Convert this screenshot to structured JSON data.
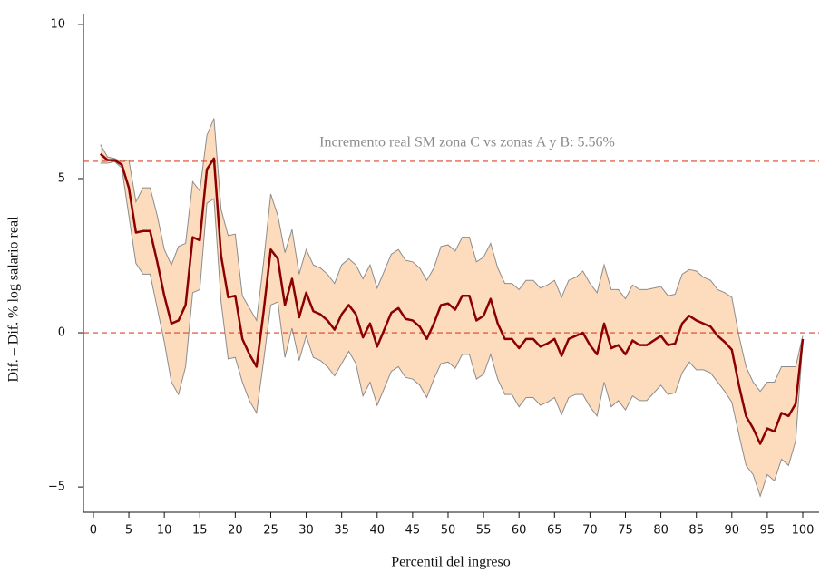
{
  "chart_data": {
    "type": "line",
    "xlabel": "Percentil del ingreso",
    "ylabel": "Dif. – Dif.  % log salario real",
    "annotation": "Incremento real SM zona C vs zonas A y B: 5.56%",
    "hlines": [
      5.56,
      0
    ],
    "hline_color": "#e0402a",
    "color": "#8b0000",
    "band_color": "#fddcbd",
    "band_edge_color": "#8c8c8c",
    "xlim": [
      -1.4,
      102.3
    ],
    "ylim": [
      -5.82,
      10.35
    ],
    "xticks": [
      0,
      5,
      10,
      15,
      20,
      25,
      30,
      35,
      40,
      45,
      50,
      55,
      60,
      65,
      70,
      75,
      80,
      85,
      90,
      95,
      100
    ],
    "yticks": [
      {
        "value": -5,
        "label": "−5"
      },
      0,
      5,
      10
    ],
    "x": [
      1,
      2,
      3,
      4,
      5,
      6,
      7,
      8,
      9,
      10,
      11,
      12,
      13,
      14,
      15,
      16,
      17,
      18,
      19,
      20,
      21,
      22,
      23,
      24,
      25,
      26,
      27,
      28,
      29,
      30,
      31,
      32,
      33,
      34,
      35,
      36,
      37,
      38,
      39,
      40,
      41,
      42,
      43,
      44,
      45,
      46,
      47,
      48,
      49,
      50,
      51,
      52,
      53,
      54,
      55,
      56,
      57,
      58,
      59,
      60,
      61,
      62,
      63,
      64,
      65,
      66,
      67,
      68,
      69,
      70,
      71,
      72,
      73,
      74,
      75,
      76,
      77,
      78,
      79,
      80,
      81,
      82,
      83,
      84,
      85,
      86,
      87,
      88,
      89,
      90,
      91,
      92,
      93,
      94,
      95,
      96,
      97,
      98,
      99,
      100
    ],
    "values": [
      5.8,
      5.6,
      5.6,
      5.45,
      4.7,
      3.25,
      3.3,
      3.3,
      2.3,
      1.2,
      0.3,
      0.4,
      0.9,
      3.1,
      3.0,
      5.3,
      5.65,
      2.5,
      1.15,
      1.2,
      -0.2,
      -0.7,
      -1.1,
      0.7,
      2.7,
      2.4,
      0.9,
      1.75,
      0.5,
      1.3,
      0.7,
      0.6,
      0.4,
      0.1,
      0.6,
      0.9,
      0.6,
      -0.15,
      0.3,
      -0.45,
      0.1,
      0.65,
      0.8,
      0.45,
      0.4,
      0.2,
      -0.2,
      0.3,
      0.9,
      0.95,
      0.75,
      1.2,
      1.2,
      0.4,
      0.55,
      1.1,
      0.3,
      -0.2,
      -0.2,
      -0.5,
      -0.2,
      -0.2,
      -0.45,
      -0.35,
      -0.2,
      -0.75,
      -0.2,
      -0.1,
      0.0,
      -0.4,
      -0.7,
      0.3,
      -0.5,
      -0.4,
      -0.7,
      -0.25,
      -0.4,
      -0.4,
      -0.25,
      -0.1,
      -0.4,
      -0.35,
      0.3,
      0.55,
      0.4,
      0.3,
      0.2,
      -0.1,
      -0.3,
      -0.55,
      -1.7,
      -2.7,
      -3.1,
      -3.6,
      -3.1,
      -3.2,
      -2.6,
      -2.7,
      -2.3,
      -0.2
    ],
    "upper": [
      6.1,
      5.7,
      5.65,
      5.55,
      5.6,
      4.25,
      4.7,
      4.7,
      3.8,
      2.7,
      2.2,
      2.8,
      2.9,
      4.9,
      4.6,
      6.4,
      6.95,
      4.0,
      3.15,
      3.2,
      1.2,
      0.8,
      0.4,
      2.3,
      4.5,
      3.8,
      2.6,
      3.35,
      1.9,
      2.7,
      2.2,
      2.1,
      1.9,
      1.6,
      2.2,
      2.4,
      2.2,
      1.75,
      2.2,
      1.45,
      2.0,
      2.55,
      2.7,
      2.35,
      2.3,
      2.1,
      1.7,
      2.1,
      2.8,
      2.85,
      2.65,
      3.1,
      3.1,
      2.3,
      2.45,
      2.9,
      2.1,
      1.6,
      1.6,
      1.4,
      1.7,
      1.7,
      1.45,
      1.55,
      1.7,
      1.15,
      1.7,
      1.8,
      2.0,
      1.6,
      1.3,
      2.2,
      1.4,
      1.4,
      1.1,
      1.55,
      1.4,
      1.4,
      1.45,
      1.5,
      1.2,
      1.25,
      1.9,
      2.05,
      2.0,
      1.8,
      1.7,
      1.4,
      1.3,
      1.15,
      -0.1,
      -1.1,
      -1.6,
      -1.9,
      -1.6,
      -1.6,
      -1.1,
      -1.1,
      -1.1,
      -0.1
    ],
    "lower": [
      5.5,
      5.5,
      5.55,
      5.35,
      3.8,
      2.25,
      1.9,
      1.9,
      0.8,
      -0.3,
      -1.6,
      -2.0,
      -1.1,
      1.3,
      1.4,
      4.2,
      4.35,
      1.0,
      -0.85,
      -0.8,
      -1.6,
      -2.2,
      -2.6,
      -0.9,
      0.9,
      1.0,
      -0.8,
      0.15,
      -0.9,
      -0.1,
      -0.8,
      -0.9,
      -1.1,
      -1.4,
      -1.0,
      -0.6,
      -1.0,
      -2.05,
      -1.6,
      -2.35,
      -1.8,
      -1.25,
      -1.1,
      -1.45,
      -1.5,
      -1.7,
      -2.1,
      -1.5,
      -1.0,
      -0.95,
      -1.15,
      -0.7,
      -0.7,
      -1.5,
      -1.35,
      -0.7,
      -1.5,
      -2.0,
      -2.0,
      -2.4,
      -2.1,
      -2.1,
      -2.35,
      -2.25,
      -2.1,
      -2.65,
      -2.1,
      -2.0,
      -2.0,
      -2.4,
      -2.7,
      -1.6,
      -2.4,
      -2.2,
      -2.5,
      -2.05,
      -2.2,
      -2.2,
      -1.95,
      -1.7,
      -2.0,
      -1.95,
      -1.3,
      -0.95,
      -1.2,
      -1.2,
      -1.3,
      -1.6,
      -1.9,
      -2.25,
      -3.3,
      -4.3,
      -4.6,
      -5.3,
      -4.6,
      -4.8,
      -4.1,
      -4.3,
      -3.5,
      -0.3
    ]
  }
}
